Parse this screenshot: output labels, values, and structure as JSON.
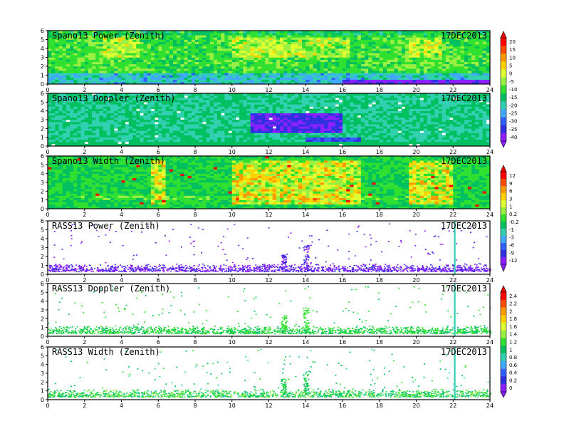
{
  "figure": {
    "date_label": "17DEC2013",
    "x_ticks": [
      0,
      2,
      4,
      6,
      8,
      10,
      12,
      14,
      16,
      18,
      20,
      22,
      24
    ],
    "y_ticks": [
      0,
      1,
      2,
      3,
      4,
      5,
      6
    ]
  },
  "chart_data": [
    {
      "type": "heatmap",
      "kind": "dense",
      "title": "Spano13 Power (Zenith)",
      "annotation": "17DEC2013",
      "xlim": [
        0,
        24
      ],
      "ylim": [
        0,
        6
      ],
      "colorbar_group": 0,
      "description_values": "mostly -10 to 0, patches up to 10 near 4-6 km around 10-16 h and 20-21 h, low values near 0.5 km after 16 h"
    },
    {
      "type": "heatmap",
      "kind": "dense",
      "title": "Spano13 Doppler (Zenith)",
      "annotation": "17DEC2013",
      "xlim": [
        0,
        24
      ],
      "ylim": [
        0,
        6
      ],
      "colorbar_group": 0
    },
    {
      "type": "heatmap",
      "kind": "dense",
      "title": "Spano13 Width (Zenith)",
      "annotation": "17DEC2013",
      "xlim": [
        0,
        24
      ],
      "ylim": [
        0,
        6
      ],
      "colorbar_group": 1
    },
    {
      "type": "heatmap",
      "kind": "sparse",
      "title": "RASS13 Power (Zenith)",
      "annotation": "17DEC2013",
      "xlim": [
        0,
        24
      ],
      "ylim": [
        0,
        6
      ],
      "colorbar_group": 1
    },
    {
      "type": "heatmap",
      "kind": "sparse",
      "title": "RASS13 Doppler (Zenith)",
      "annotation": "17DEC2013",
      "xlim": [
        0,
        24
      ],
      "ylim": [
        0,
        6
      ],
      "colorbar_group": 2
    },
    {
      "type": "heatmap",
      "kind": "sparse",
      "title": "RASS13 Width (Zenith)",
      "annotation": "17DEC2013",
      "xlim": [
        0,
        24
      ],
      "ylim": [
        0,
        6
      ],
      "colorbar_group": 2
    }
  ],
  "colorbars": [
    {
      "labels": [
        "20",
        "15",
        "10",
        "5",
        "0",
        "-5",
        "-10",
        "-15",
        "-20",
        "-25",
        "-30",
        "-35",
        "-40"
      ],
      "colors": [
        "#ff0000",
        "#ff4a00",
        "#ff9a00",
        "#ffd200",
        "#e0ff30",
        "#9af040",
        "#30e030",
        "#00c060",
        "#30d0b0",
        "#40a8ff",
        "#3060ff",
        "#3030e0",
        "#8a20ff"
      ]
    },
    {
      "labels": [
        "12",
        "9",
        "6",
        "3",
        "1",
        "0.2",
        "-0.2",
        "-1",
        "-3",
        "-6",
        "-9",
        "-12"
      ],
      "colors": [
        "#ff0000",
        "#ff4a00",
        "#ff9a00",
        "#ffd200",
        "#e0ff30",
        "#9af040",
        "#30e030",
        "#00c060",
        "#30d0b0",
        "#40a8ff",
        "#3060ff",
        "#3030e0",
        "#8a20ff"
      ]
    },
    {
      "labels": [
        "2.4",
        "2.2",
        "2",
        "1.8",
        "1.6",
        "1.4",
        "1.2",
        "1",
        "0.8",
        "0.6",
        "0.4",
        "0.2",
        "0"
      ],
      "colors": [
        "#ff0000",
        "#ff4a00",
        "#ff9a00",
        "#ffd200",
        "#e0ff30",
        "#9af040",
        "#30e030",
        "#00c060",
        "#30d0b0",
        "#40a8ff",
        "#3060ff",
        "#3030e0",
        "#8a20ff"
      ]
    }
  ]
}
